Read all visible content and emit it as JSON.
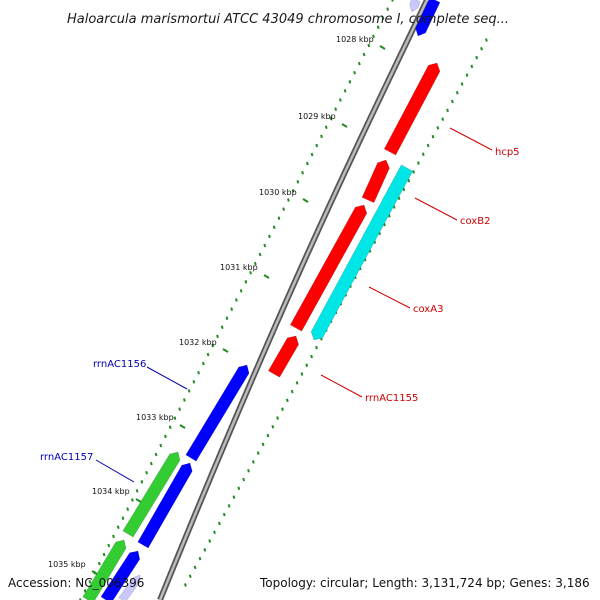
{
  "title": "Haloarcula marismortui ATCC 43049 chromosome I, complete seq...",
  "accession": "Accession: NC_006396",
  "stats": "Topology: circular; Length: 3,131,724 bp; Genes: 3,186",
  "ticks": [
    "1028 kbp",
    "1029 kbp",
    "1030 kbp",
    "1031 kbp",
    "1032 kbp",
    "1033 kbp",
    "1034 kbp",
    "1035 kbp"
  ],
  "genes": [
    {
      "name": "hcp5",
      "color": "#ff0000",
      "label_color": "#cc0000"
    },
    {
      "name": "coxB2",
      "color": "#ff0000",
      "label_color": "#cc0000"
    },
    {
      "name": "coxA3",
      "color": "#00e5e5",
      "label_color": "#cc0000"
    },
    {
      "name": "rrnAC1155",
      "color": "#ff0000",
      "label_color": "#cc0000"
    },
    {
      "name": "rrnAC1156",
      "color": "#0000ff",
      "label_color": "#0000aa"
    },
    {
      "name": "rrnAC1157",
      "color": "#33cc33",
      "label_color": "#0000aa"
    }
  ],
  "colors": {
    "backbone": "#888888",
    "tick_dots": "#228b22",
    "forward": "#ff0000",
    "forward_alt": "#00e5e5",
    "reverse": "#0000ff",
    "reverse_alt": "#33cc33",
    "faded": "#c8c8ff"
  }
}
